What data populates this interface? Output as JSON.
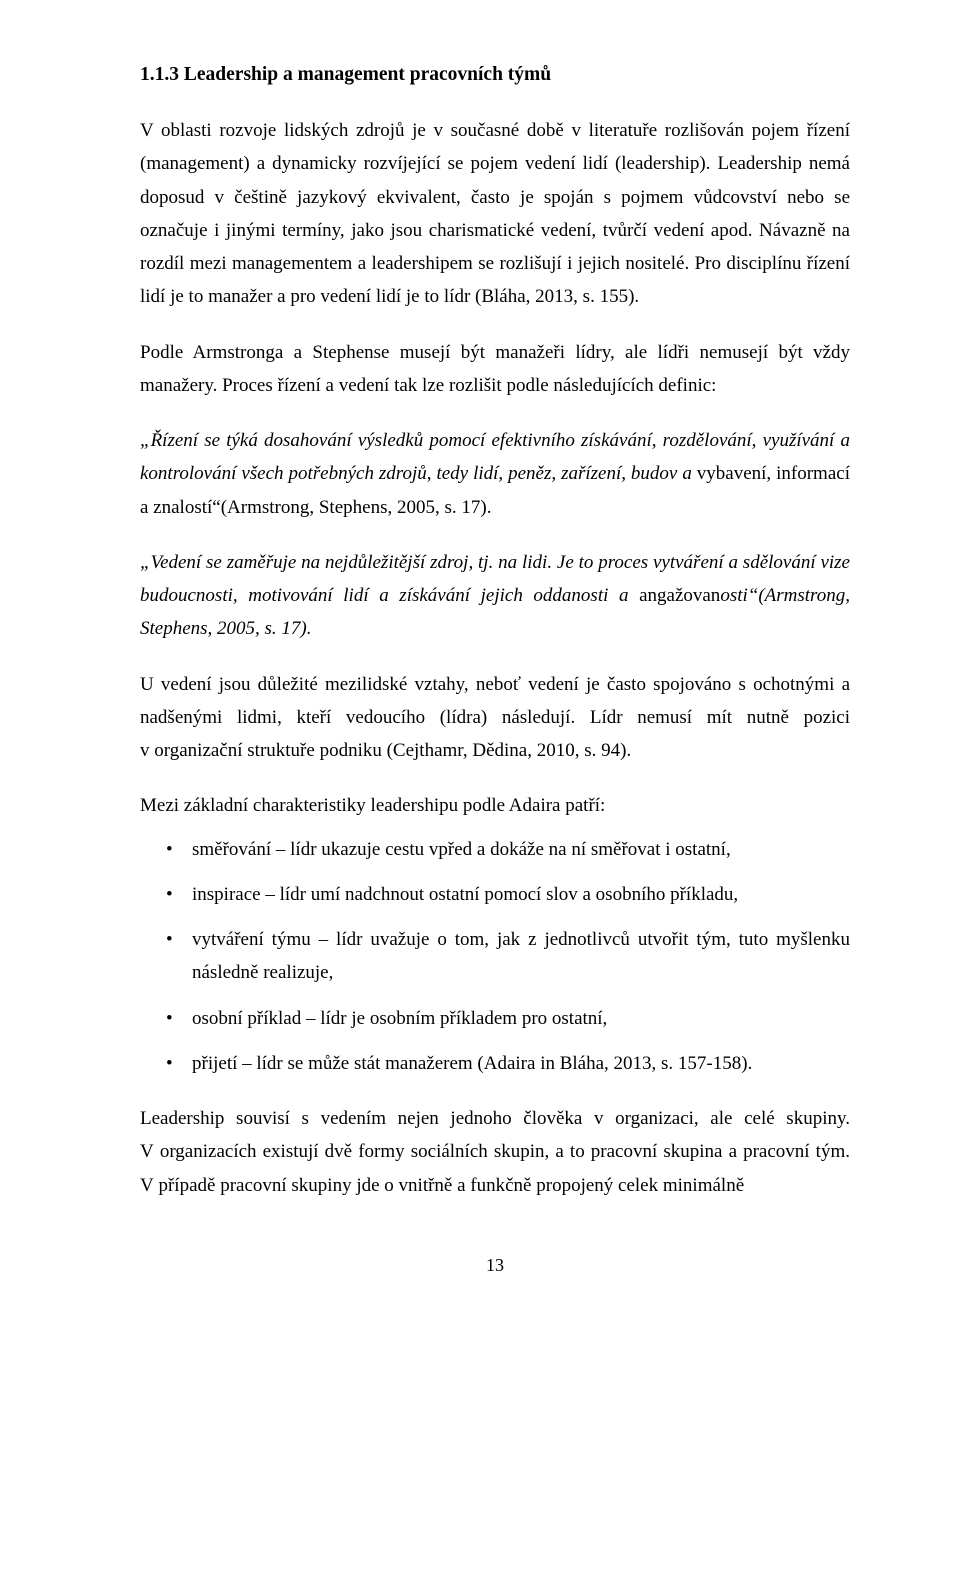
{
  "heading": "1.1.3  Leadership a management pracovních týmů",
  "p1": "V oblasti rozvoje lidských zdrojů je v současné době v literatuře rozlišován pojem řízení (management) a dynamicky rozvíjející se pojem vedení lidí (leadership). Leadership nemá doposud v češtině jazykový ekvivalent, často je spoján s pojmem vůdcovství nebo se označuje i jinými termíny, jako jsou charismatické vedení, tvůrčí vedení apod. Návazně na rozdíl mezi managementem a leadershipem se rozlišují i jejich nositelé. Pro disciplínu řízení lidí je to manažer a pro vedení lidí je to lídr (Bláha, 2013, s. 155).",
  "p2": "Podle Armstronga a Stephense musejí být manažeři lídry, ale lídři nemusejí být vždy manažery. Proces řízení a vedení tak lze rozlišit podle následujících definic:",
  "p3a": "„Řízení se týká dosahování výsledků pomocí efektivního získávání, rozdělování, využívání a kontrolování všech potřebných zdrojů, tedy lidí, peněz, zařízení, budov a ",
  "p3b": "vybavení, informací a znalostí“(Armstrong, Stephens, 2005, s. 17).",
  "p4a": "„Vedení se zaměřuje na nejdůležitější zdroj, tj. na lidi. Je to proces vytváření a sdělování vize budoucnosti, motivování lidí a získávání jejich oddanosti a ",
  "p4b": "angažovan",
  "p4c": "osti“(Armstrong, Stephens, 2005, s. 17).",
  "p5": "U vedení jsou důležité mezilidské vztahy, neboť vedení je často spojováno s ochotnými a nadšenými lidmi, kteří vedoucího (lídra) následují. Lídr nemusí mít nutně pozici v organizační struktuře podniku (Cejthamr, Dědina, 2010, s. 94).",
  "p6": "Mezi základní charakteristiky leadershipu podle Adaira patří:",
  "bullets": [
    "směřování – lídr ukazuje cestu vpřed a dokáže na ní směřovat i ostatní,",
    "inspirace – lídr umí nadchnout ostatní pomocí slov a osobního příkladu,",
    "vytváření týmu – lídr uvažuje o tom, jak z jednotlivců utvořit tým, tuto myšlenku následně realizuje,",
    "osobní příklad – lídr je osobním příkladem pro ostatní,",
    "přijetí – lídr se může stát manažerem (Adaira in Bláha, 2013, s. 157-158)."
  ],
  "p7": "Leadership souvisí s vedením nejen jednoho člověka v organizaci, ale celé skupiny. V organizacích existují dvě formy sociálních skupin, a to pracovní skupina a pracovní tým. V případě pracovní skupiny jde o vnitřně a funkčně propojený celek minimálně",
  "pagenum": "13"
}
